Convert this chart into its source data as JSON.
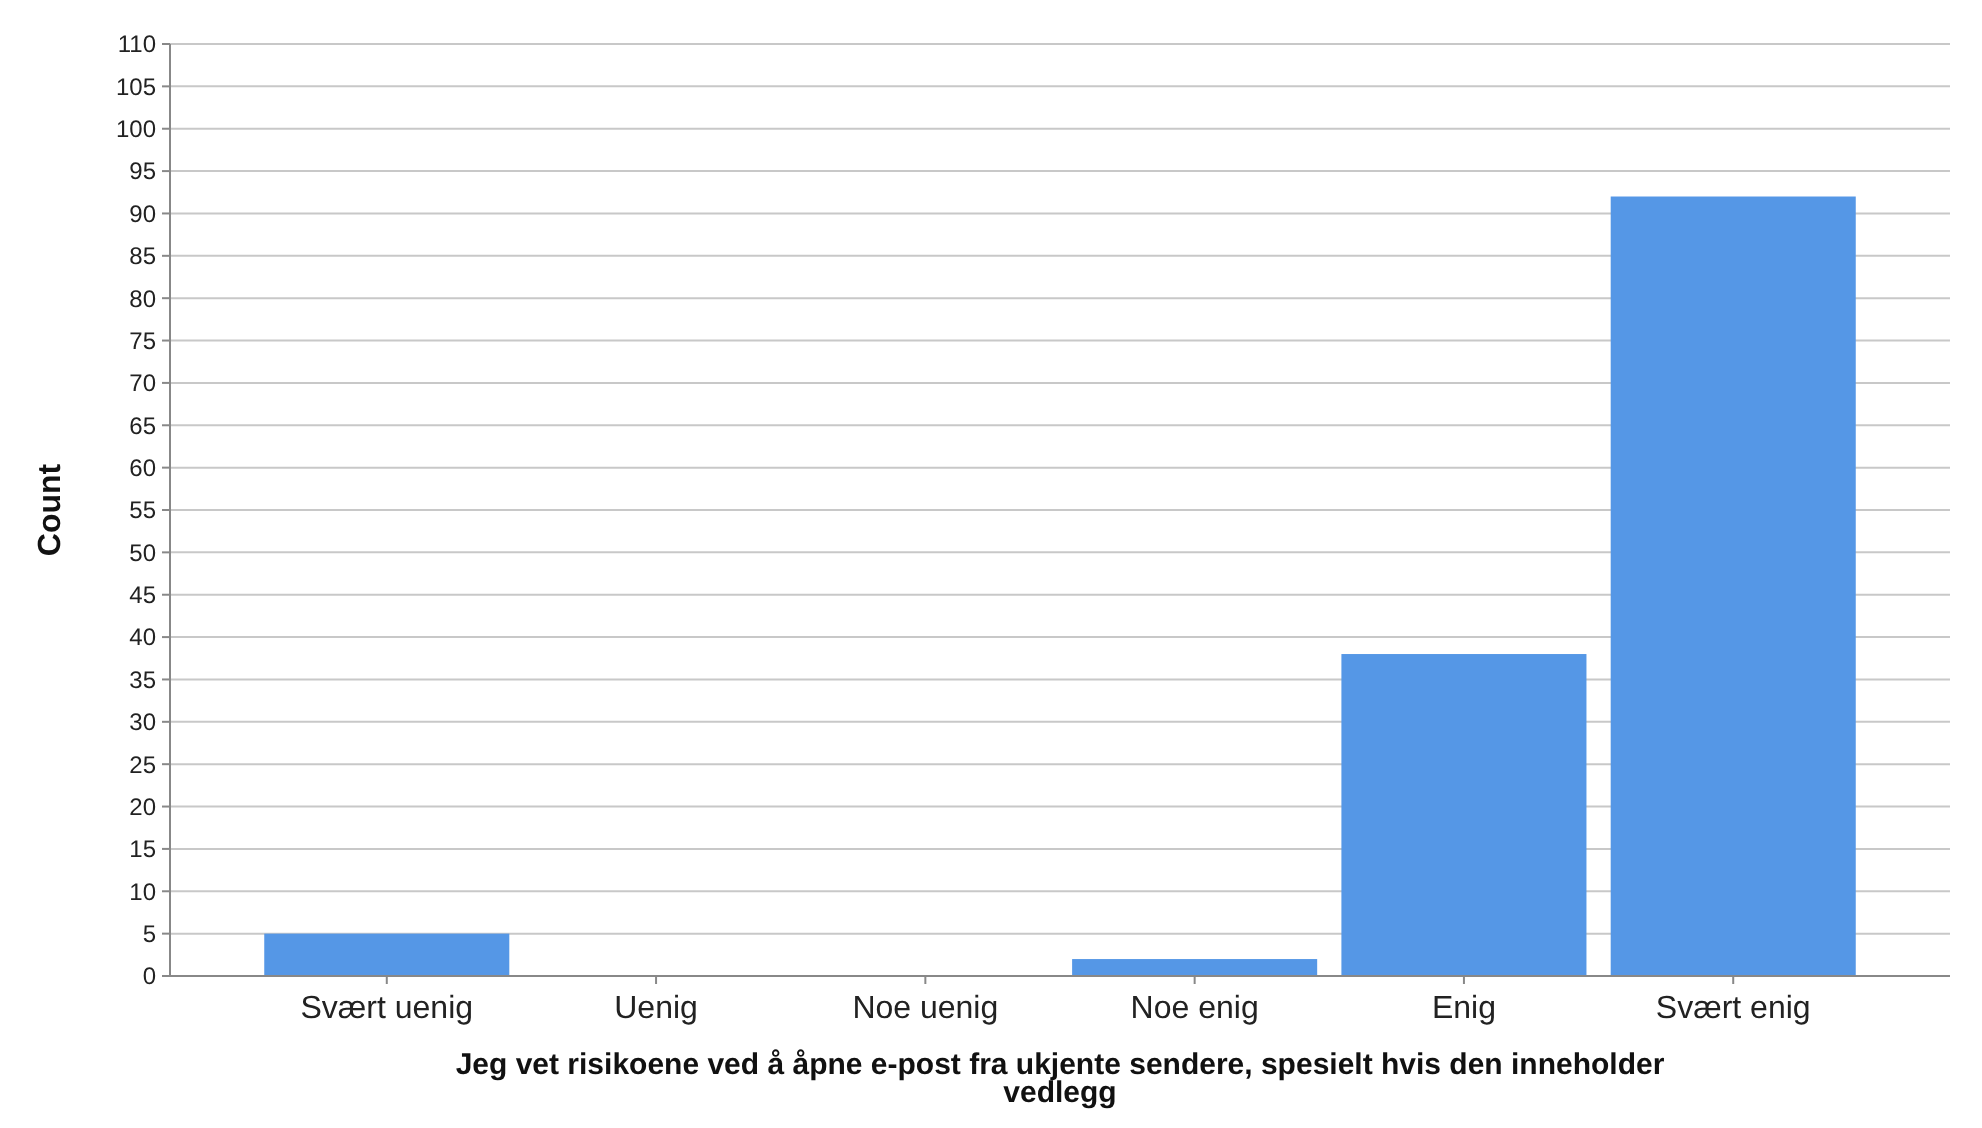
{
  "chart_data": {
    "type": "bar",
    "xlabel": "Jeg vet risikoene ved å åpne e-post fra ukjente sendere, spesielt hvis den inneholder vedlegg",
    "ylabel": "Count",
    "categories": [
      "Svært uenig",
      "Uenig",
      "Noe uenig",
      "Noe enig",
      "Enig",
      "Svært enig"
    ],
    "values": [
      5,
      0,
      0,
      2,
      38,
      92
    ],
    "color": "#5597e6",
    "ylim": [
      0,
      110
    ],
    "yticks": [
      0,
      5,
      10,
      15,
      20,
      25,
      30,
      35,
      40,
      45,
      50,
      55,
      60,
      65,
      70,
      75,
      80,
      85,
      90,
      95,
      100,
      105,
      110
    ],
    "grid": "y"
  }
}
